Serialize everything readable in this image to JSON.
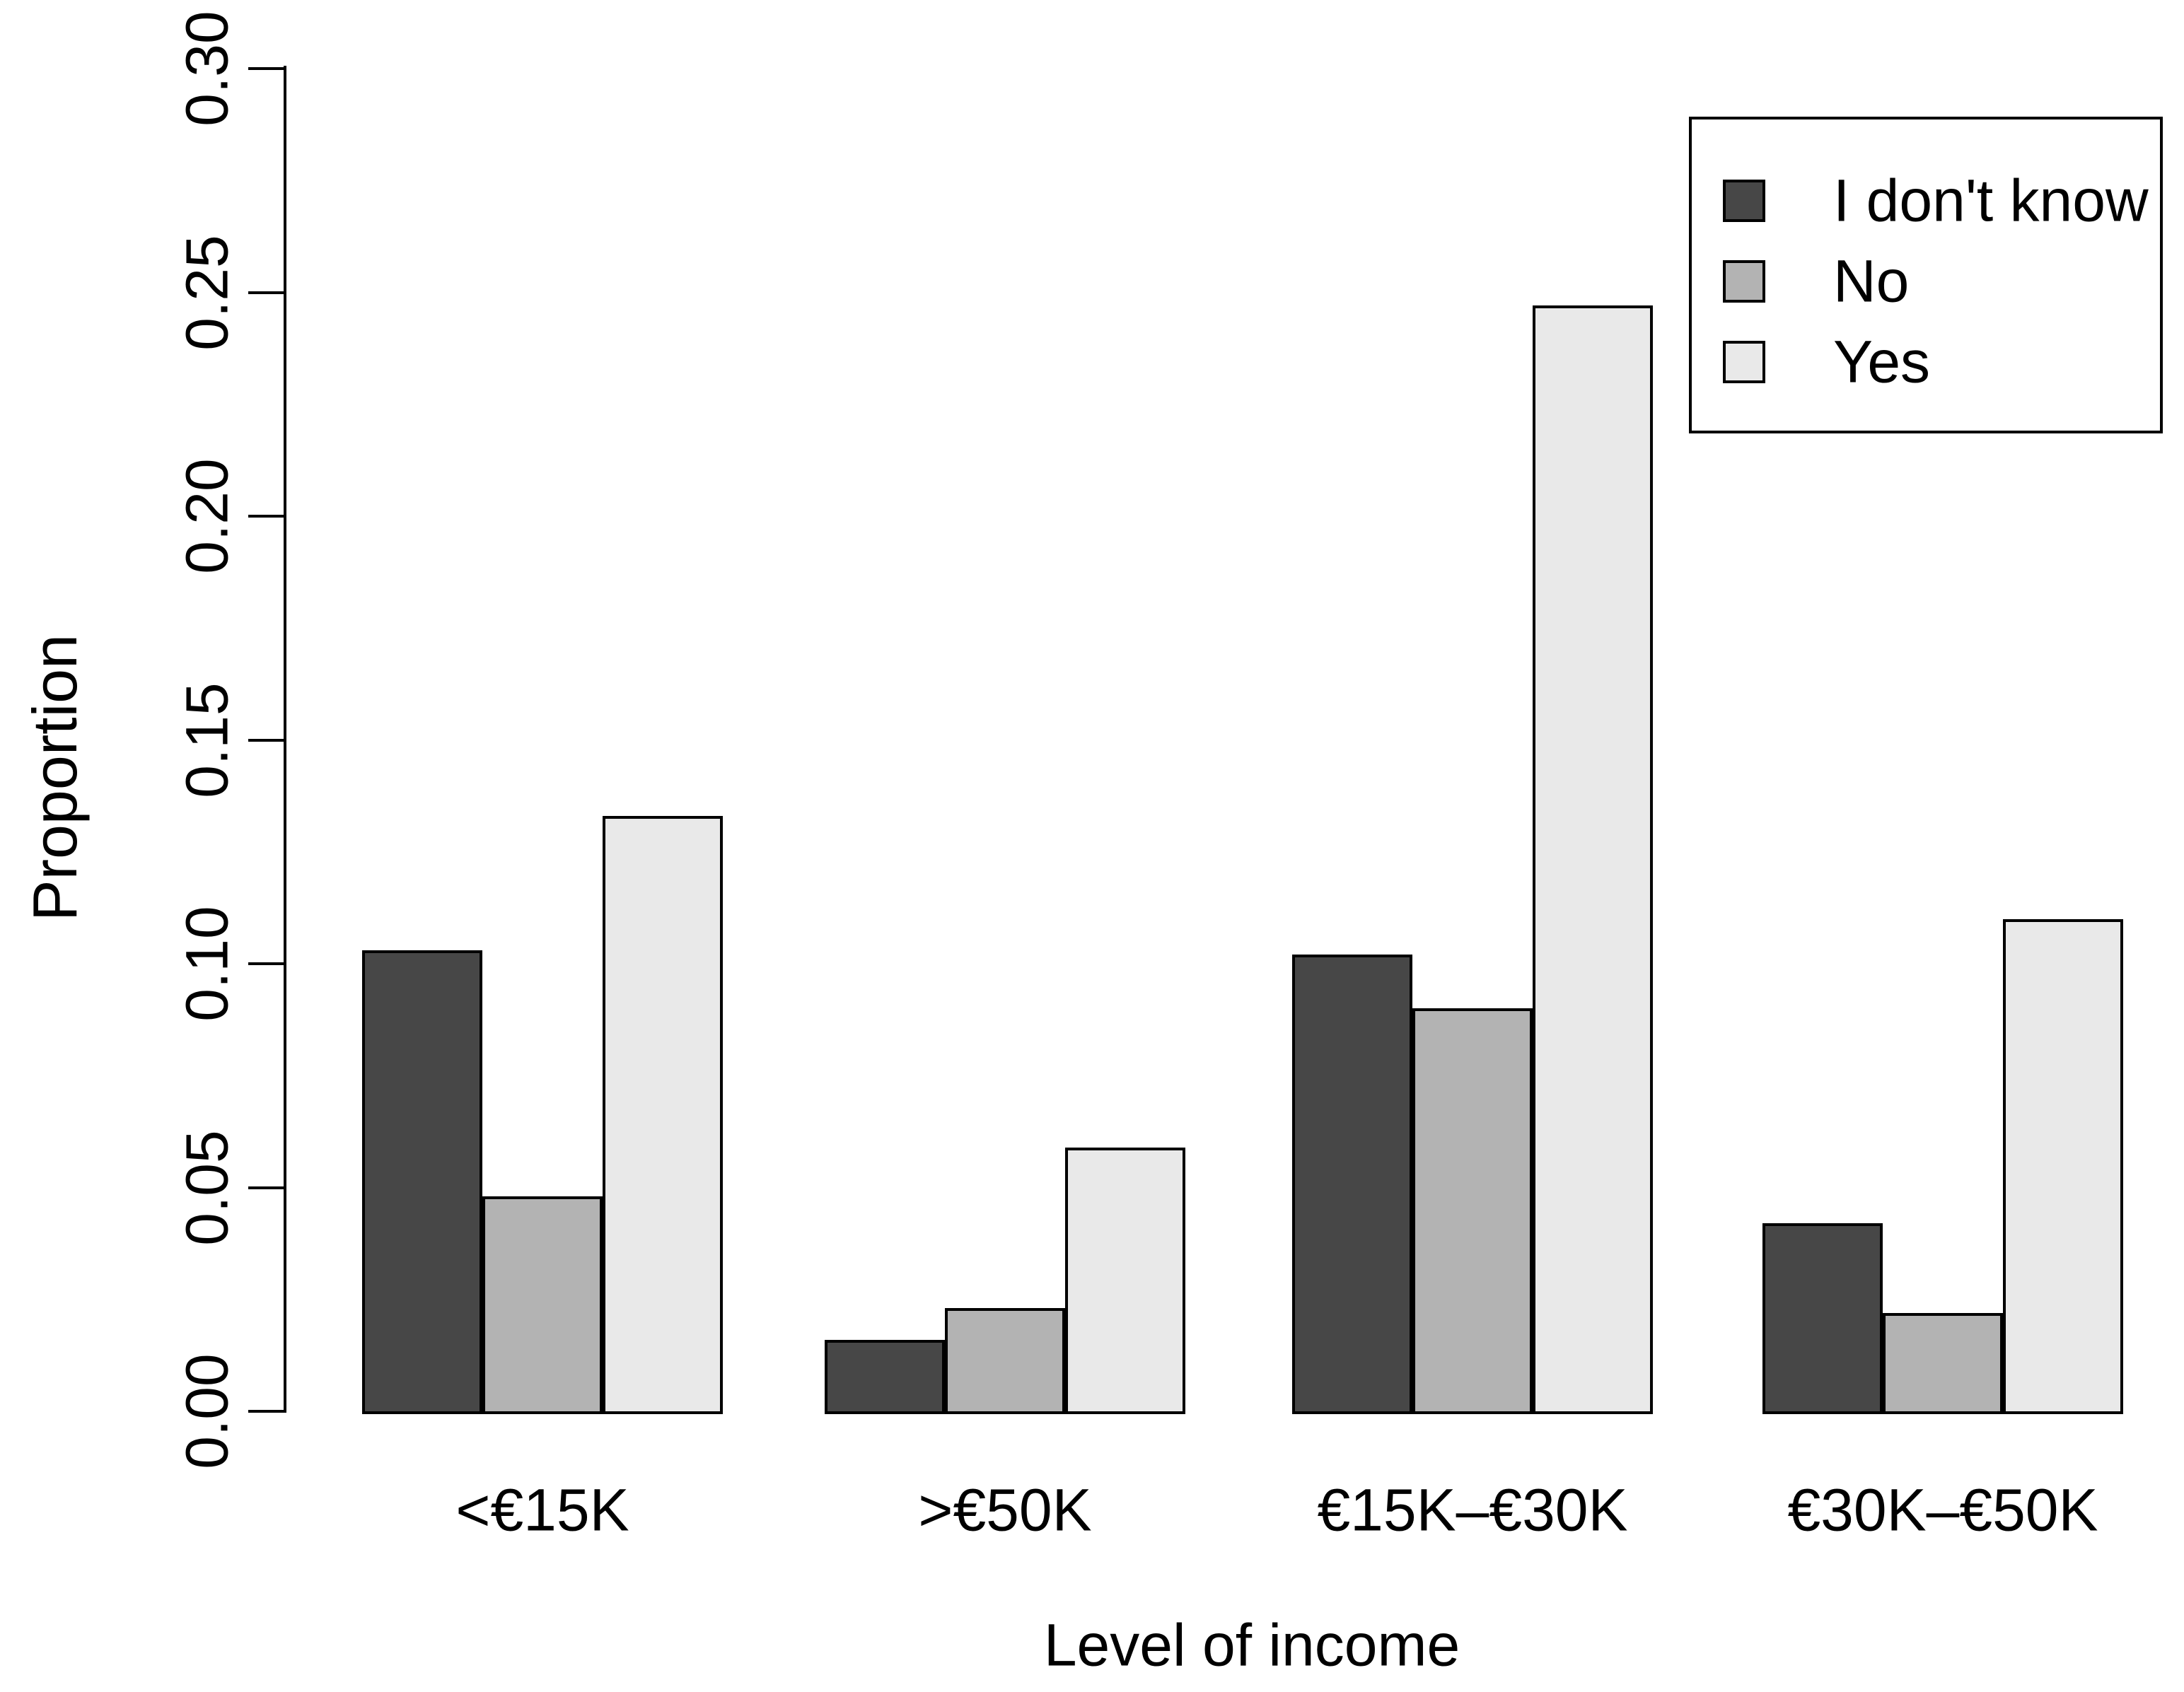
{
  "chart_data": {
    "type": "bar",
    "title": "",
    "xlabel": "Level of income",
    "ylabel": "Proportion",
    "categories": [
      "<€15K",
      ">€50K",
      "€15K–€30K",
      "€30K–€50K"
    ],
    "series": [
      {
        "name": "I don't know",
        "color": "#474747",
        "values": [
          0.103,
          0.016,
          0.102,
          0.042
        ]
      },
      {
        "name": "No",
        "color": "#b3b3b3",
        "values": [
          0.048,
          0.023,
          0.09,
          0.022
        ]
      },
      {
        "name": "Yes",
        "color": "#e9e9e9",
        "values": [
          0.133,
          0.059,
          0.247,
          0.11
        ]
      }
    ],
    "y_ticks": [
      "0.00",
      "0.05",
      "0.10",
      "0.15",
      "0.20",
      "0.25",
      "0.30"
    ],
    "y_tick_values": [
      0.0,
      0.05,
      0.1,
      0.15,
      0.2,
      0.25,
      0.3
    ],
    "ylim": [
      0.0,
      0.3
    ],
    "grid": false,
    "legend_position": "top-right",
    "bar_border_color": "#000000",
    "axis_color": "#000000",
    "background_color": "#ffffff"
  }
}
